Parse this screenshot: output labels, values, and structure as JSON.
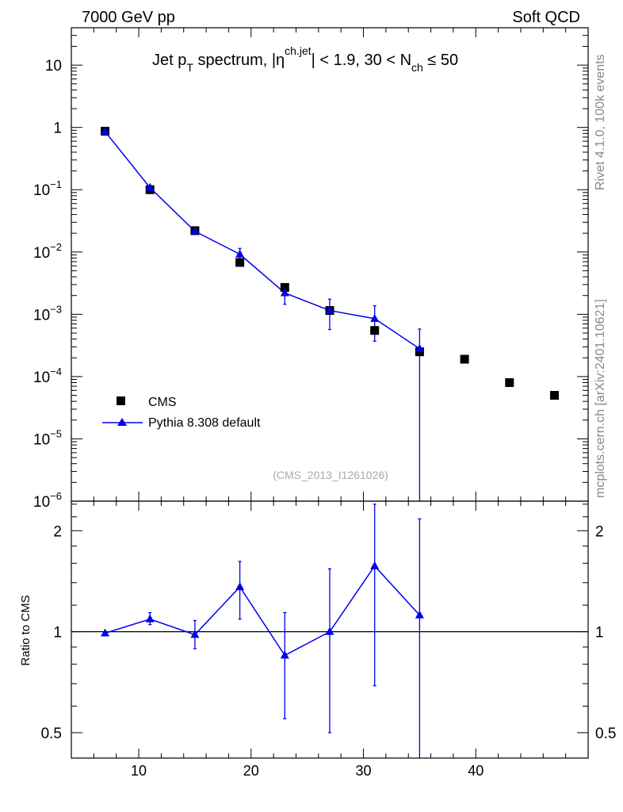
{
  "header": {
    "energy_label": "7000 GeV pp",
    "category_label": "Soft QCD"
  },
  "side_text": {
    "rivet": "Rivet 4.1.0,  100k events",
    "site": "mcplots.cern.ch [arXiv:2401.10621]"
  },
  "colors": {
    "mc": "#0000ee",
    "data": "#000000"
  },
  "chart_data": [
    {
      "type": "scatter",
      "panel": "main",
      "title_parts": {
        "p1": "Jet p",
        "p1_sub": "T",
        "p2": " spectrum, |η",
        "p2_sup": "ch.jet",
        "p3": "| < 1.9, 30 < N",
        "p3_sub": "ch",
        "p4": " ≤ 50"
      },
      "yscale": "log",
      "xlim": [
        4,
        50
      ],
      "ylim_exp": [
        -6,
        1.6
      ],
      "ytick_labels": [
        {
          "exp": 1,
          "text": "10"
        },
        {
          "exp": 0,
          "text": "1"
        },
        {
          "exp": -1,
          "base": "10",
          "sup": "−1"
        },
        {
          "exp": -2,
          "base": "10",
          "sup": "−2"
        },
        {
          "exp": -3,
          "base": "10",
          "sup": "−3"
        },
        {
          "exp": -4,
          "base": "10",
          "sup": "−4"
        },
        {
          "exp": -5,
          "base": "10",
          "sup": "−5"
        },
        {
          "exp": -6,
          "base": "10",
          "sup": "−6"
        }
      ],
      "analysis_label": "(CMS_2013_I1261026)",
      "legend": {
        "position": "left",
        "entries": [
          "CMS",
          "Pythia 8.308 default"
        ]
      },
      "series": [
        {
          "name": "CMS",
          "marker": "square",
          "x": [
            7,
            11,
            15,
            19,
            23,
            27,
            31,
            35,
            39,
            43,
            47
          ],
          "y": [
            0.87,
            0.1,
            0.022,
            0.0068,
            0.0027,
            0.00115,
            0.00055,
            0.00025,
            0.00019,
            8e-05,
            5e-05
          ]
        },
        {
          "name": "Pythia 8.308 default",
          "marker": "triangle",
          "x": [
            7,
            11,
            15,
            19,
            23,
            27,
            31,
            35
          ],
          "y": [
            0.86,
            0.108,
            0.0215,
            0.0092,
            0.0022,
            0.00115,
            0.00085,
            0.00028
          ],
          "err_lo": [
            0.01,
            0.01,
            0.002,
            0.0022,
            0.00075,
            0.00058,
            0.00048,
            0.00028
          ],
          "err_hi": [
            0.01,
            0.01,
            0.002,
            0.0022,
            0.00085,
            0.0006,
            0.00052,
            0.0003
          ]
        }
      ]
    },
    {
      "type": "line",
      "panel": "ratio",
      "ylabel": "Ratio to CMS",
      "yscale": "log",
      "ylim": [
        0.42,
        2.45
      ],
      "ytick_labels": [
        {
          "value": 2,
          "text": "2"
        },
        {
          "value": 1,
          "text": "1"
        },
        {
          "value": 0.5,
          "text": "0.5"
        }
      ],
      "xticks": [
        10,
        20,
        30,
        40
      ],
      "reference_line": 1,
      "series": [
        {
          "name": "Pythia 8.308 default",
          "x": [
            7,
            11,
            15,
            19,
            23,
            27,
            31,
            35
          ],
          "y": [
            0.99,
            1.09,
            0.98,
            1.36,
            0.85,
            1.0,
            1.57,
            1.12
          ],
          "err_lo": [
            0.0,
            0.04,
            0.09,
            0.27,
            0.3,
            0.5,
            0.88,
            0.8
          ],
          "err_hi": [
            0.0,
            0.05,
            0.1,
            0.26,
            0.29,
            0.54,
            0.83,
            1.05
          ]
        }
      ]
    }
  ]
}
